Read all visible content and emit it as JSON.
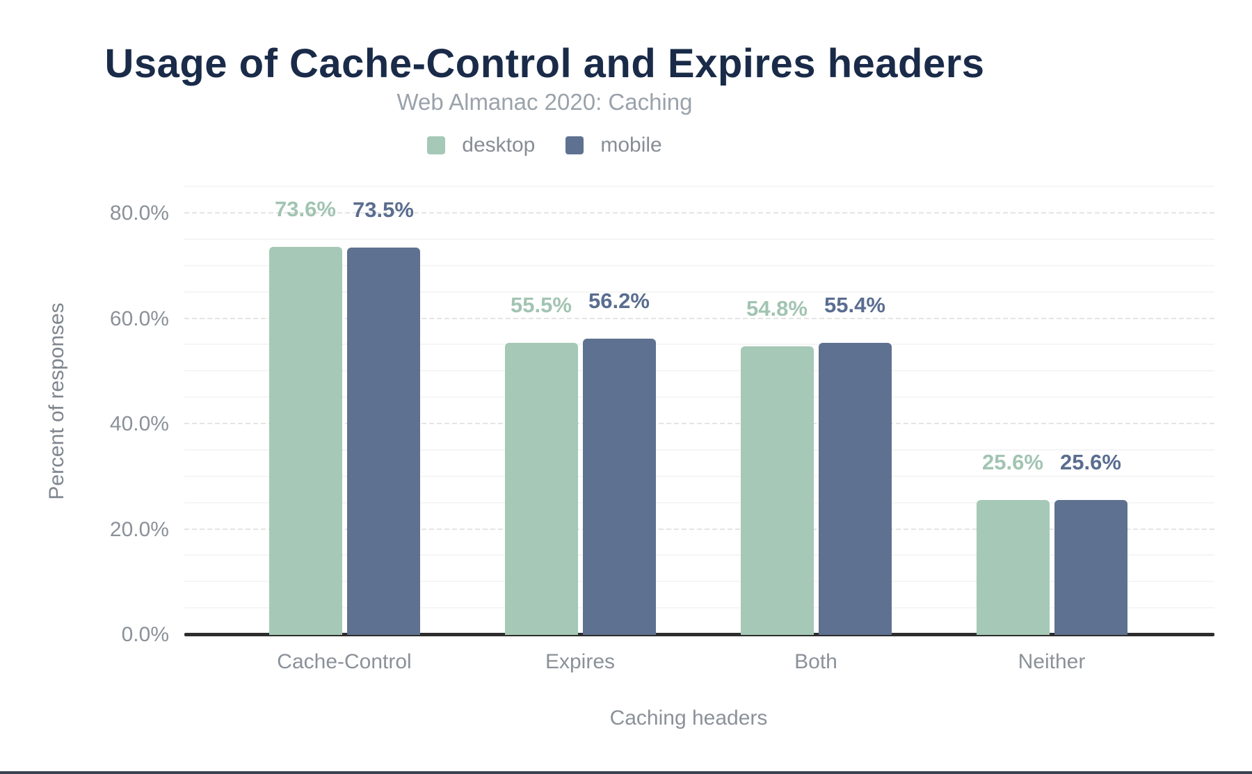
{
  "chart": {
    "title": "Usage of Cache-Control and Expires headers",
    "subtitle": "Web Almanac 2020: Caching",
    "legend": [
      {
        "label": "desktop",
        "color": "#a5c8b7"
      },
      {
        "label": "mobile",
        "color": "#5f7190"
      }
    ],
    "xlabel": "Caching headers",
    "ylabel": "Percent of responses"
  },
  "chart_data": {
    "type": "bar",
    "title": "Usage of Cache-Control and Expires headers",
    "subtitle": "Web Almanac 2020: Caching",
    "xlabel": "Caching headers",
    "ylabel": "Percent of responses",
    "categories": [
      "Cache-Control",
      "Expires",
      "Both",
      "Neither"
    ],
    "series": [
      {
        "name": "desktop",
        "color": "#a5c8b7",
        "label_color": "#a2c4b2",
        "values": [
          73.6,
          55.5,
          54.8,
          25.6
        ],
        "labels": [
          "73.6%",
          "55.5%",
          "54.8%",
          "25.6%"
        ]
      },
      {
        "name": "mobile",
        "color": "#5f7190",
        "label_color": "#5a6d90",
        "values": [
          73.5,
          56.2,
          55.4,
          25.6
        ],
        "labels": [
          "73.5%",
          "56.2%",
          "55.4%",
          "25.6%"
        ]
      }
    ],
    "ylim": [
      0,
      85
    ],
    "yticks": [
      {
        "value": 0,
        "label": "0.0%"
      },
      {
        "value": 20,
        "label": "20.0%"
      },
      {
        "value": 40,
        "label": "40.0%"
      },
      {
        "value": 60,
        "label": "60.0%"
      },
      {
        "value": 80,
        "label": "80.0%"
      }
    ],
    "grid": {
      "minor_step": 5,
      "major_step": 20,
      "visible": true
    },
    "legend_position": "top",
    "value_labels_shown": true
  }
}
